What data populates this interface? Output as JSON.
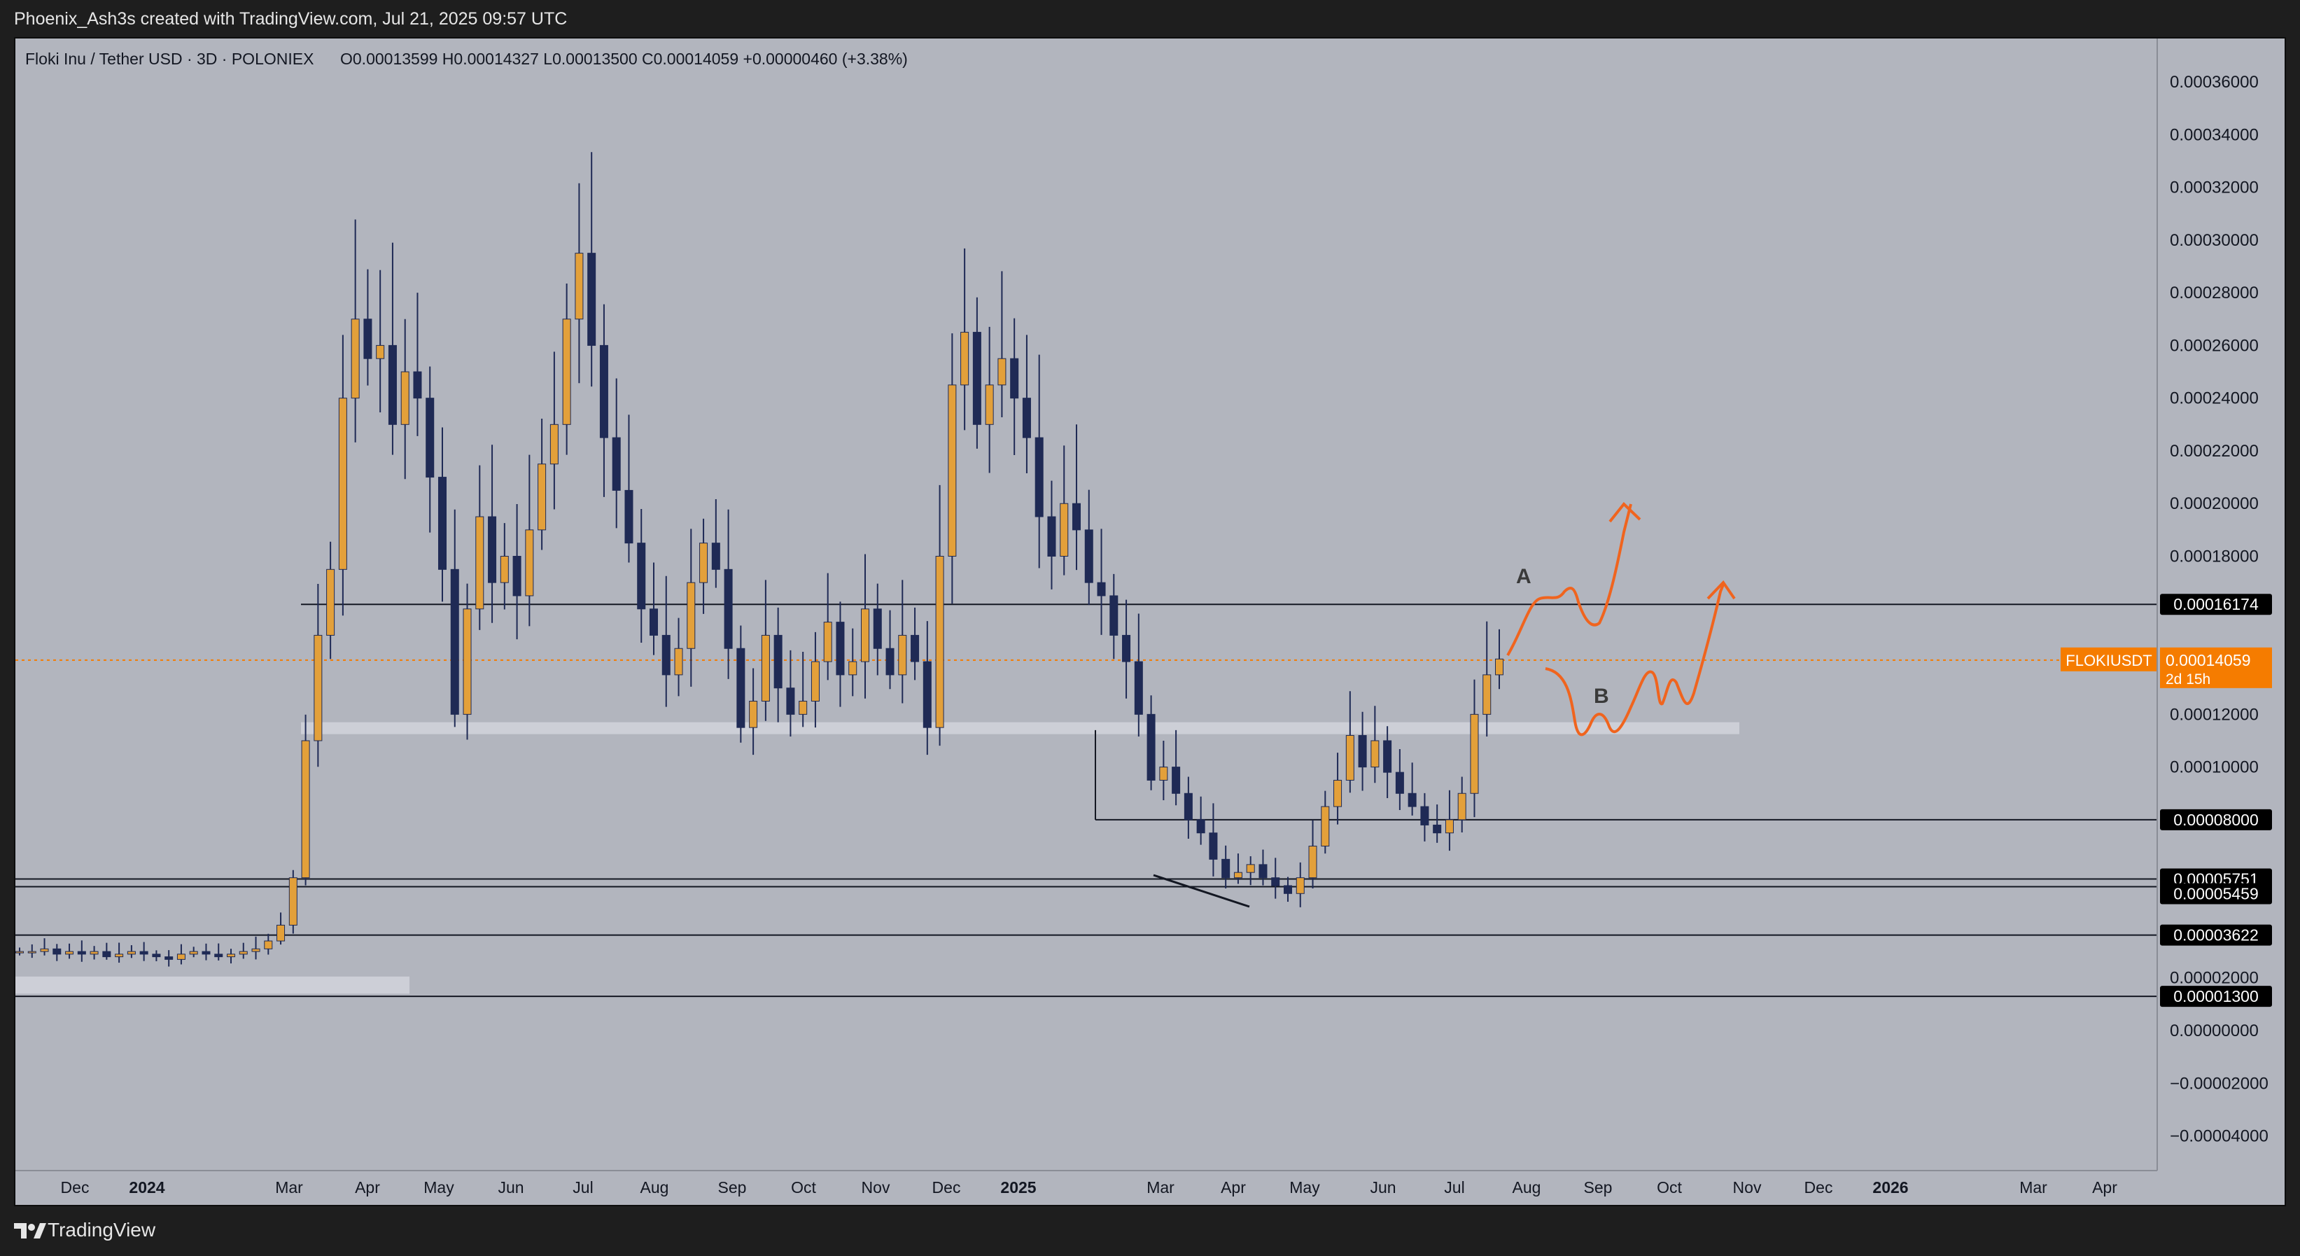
{
  "header": {
    "attribution": "Phoenix_Ash3s created with TradingView.com, Jul 21, 2025 09:57 UTC"
  },
  "footer": {
    "brand": "TradingView",
    "logo_icon": "tradingview-logo-icon"
  },
  "chart_data": {
    "type": "candlestick",
    "title": "Floki Inu / Tether USD · 3D · POLONIEX",
    "ohlc_label": "O0.00013599  H0.00014327  L0.00013500  C0.00014059  +0.00000460 (+3.38%)",
    "symbol": "FLOKIUSDT",
    "last_price": "0.00014059",
    "countdown": "2d 15h",
    "y_axis": {
      "ticks": [
        "0.00036000",
        "0.00034000",
        "0.00032000",
        "0.00030000",
        "0.00028000",
        "0.00026000",
        "0.00024000",
        "0.00022000",
        "0.00020000",
        "0.00018000",
        "0.00012000",
        "0.00010000",
        "0.00002000",
        "0.00000000",
        "−0.00002000",
        "−0.00004000"
      ],
      "range": [
        -5.3e-05,
        0.000375
      ]
    },
    "x_axis": {
      "ticks": [
        {
          "label": "Dec",
          "bold": false
        },
        {
          "label": "2024",
          "bold": true
        },
        {
          "label": "Mar",
          "bold": false
        },
        {
          "label": "Apr",
          "bold": false
        },
        {
          "label": "May",
          "bold": false
        },
        {
          "label": "Jun",
          "bold": false
        },
        {
          "label": "Jul",
          "bold": false
        },
        {
          "label": "Aug",
          "bold": false
        },
        {
          "label": "Sep",
          "bold": false
        },
        {
          "label": "Oct",
          "bold": false
        },
        {
          "label": "Nov",
          "bold": false
        },
        {
          "label": "Dec",
          "bold": false
        },
        {
          "label": "2025",
          "bold": true
        },
        {
          "label": "Mar",
          "bold": false
        },
        {
          "label": "Apr",
          "bold": false
        },
        {
          "label": "May",
          "bold": false
        },
        {
          "label": "Jun",
          "bold": false
        },
        {
          "label": "Jul",
          "bold": false
        },
        {
          "label": "Aug",
          "bold": false
        },
        {
          "label": "Sep",
          "bold": false
        },
        {
          "label": "Oct",
          "bold": false
        },
        {
          "label": "Nov",
          "bold": false
        },
        {
          "label": "Dec",
          "bold": false
        },
        {
          "label": "2026",
          "bold": true
        },
        {
          "label": "Mar",
          "bold": false
        },
        {
          "label": "Apr",
          "bold": false
        }
      ]
    },
    "horizontal_levels": [
      "0.00016174",
      "0.00008000",
      "0.00005751",
      "0.00005459",
      "0.00003622",
      "0.00001300"
    ],
    "annotations": {
      "scenario_a": "A",
      "scenario_b": "B"
    },
    "close_path": [
      3e-05,
      3e-05,
      3.1e-05,
      2.9e-05,
      3e-05,
      2.9e-05,
      3e-05,
      2.8e-05,
      2.9e-05,
      3e-05,
      2.9e-05,
      2.8e-05,
      2.7e-05,
      2.9e-05,
      3e-05,
      2.9e-05,
      2.8e-05,
      2.9e-05,
      3e-05,
      3.1e-05,
      3.4e-05,
      4e-05,
      5.8e-05,
      0.00011,
      0.00015,
      0.000175,
      0.00024,
      0.00027,
      0.000255,
      0.00026,
      0.00023,
      0.00025,
      0.00024,
      0.00021,
      0.000175,
      0.00012,
      0.00016,
      0.000195,
      0.00017,
      0.00018,
      0.000165,
      0.00019,
      0.000215,
      0.00023,
      0.00027,
      0.000295,
      0.00026,
      0.000225,
      0.000205,
      0.000185,
      0.00016,
      0.00015,
      0.000135,
      0.000145,
      0.00017,
      0.000185,
      0.000175,
      0.000145,
      0.000115,
      0.000125,
      0.00015,
      0.00013,
      0.00012,
      0.000125,
      0.00014,
      0.000155,
      0.000135,
      0.00014,
      0.00016,
      0.000145,
      0.000135,
      0.00015,
      0.00014,
      0.000115,
      0.00018,
      0.000245,
      0.000265,
      0.00023,
      0.000245,
      0.000255,
      0.00024,
      0.000225,
      0.000195,
      0.00018,
      0.0002,
      0.00019,
      0.00017,
      0.000165,
      0.00015,
      0.00014,
      0.00012,
      9.5e-05,
      0.0001,
      9e-05,
      8e-05,
      7.5e-05,
      6.5e-05,
      5.8e-05,
      6e-05,
      6.3e-05,
      5.8e-05,
      5.5e-05,
      5.2e-05,
      5.8e-05,
      7e-05,
      8.5e-05,
      9.5e-05,
      0.000112,
      0.0001,
      0.00011,
      9.8e-05,
      9e-05,
      8.5e-05,
      7.8e-05,
      7.5e-05,
      8e-05,
      9e-05,
      0.00012,
      0.000135,
      0.000141
    ],
    "grid": false
  }
}
